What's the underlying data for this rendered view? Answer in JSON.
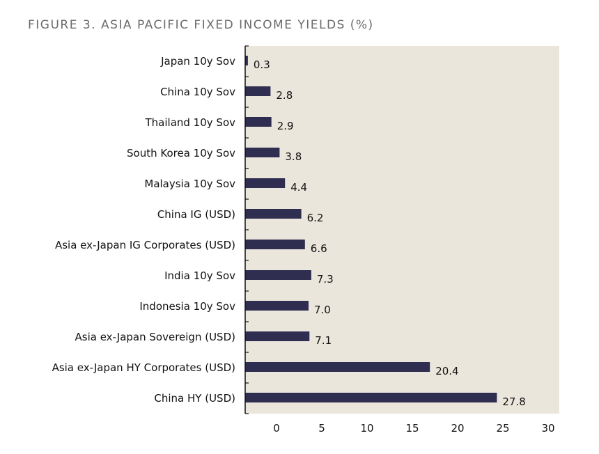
{
  "chart_data": {
    "type": "bar",
    "orientation": "horizontal",
    "title": "FIGURE 3. ASIA PACIFIC FIXED INCOME YIELDS (%)",
    "xlabel": "",
    "ylabel": "",
    "categories": [
      "Japan 10y Sov",
      "China 10y Sov",
      "Thailand 10y Sov",
      "South Korea 10y Sov",
      "Malaysia 10y Sov",
      "China IG (USD)",
      "Asia ex-Japan IG Corporates (USD)",
      "India 10y Sov",
      "Indonesia 10y Sov",
      "Asia ex-Japan Sovereign (USD)",
      "Asia ex-Japan HY Corporates (USD)",
      "China HY (USD)"
    ],
    "values": [
      0.3,
      2.8,
      2.9,
      3.8,
      4.4,
      6.2,
      6.6,
      7.3,
      7.0,
      7.1,
      20.4,
      27.8
    ],
    "value_labels": [
      "0.3",
      "2.8",
      "2.9",
      "3.8",
      "4.4",
      "6.2",
      "6.6",
      "7.3",
      "7.0",
      "7.1",
      "20.4",
      "27.8"
    ],
    "xticks": [
      "0",
      "5",
      "10",
      "15",
      "20",
      "25",
      "30"
    ],
    "grid": false,
    "legend": "none",
    "colors": {
      "bar": "#2f2d50",
      "plot_background": "#ebe6dc",
      "axis": "#111111"
    }
  }
}
